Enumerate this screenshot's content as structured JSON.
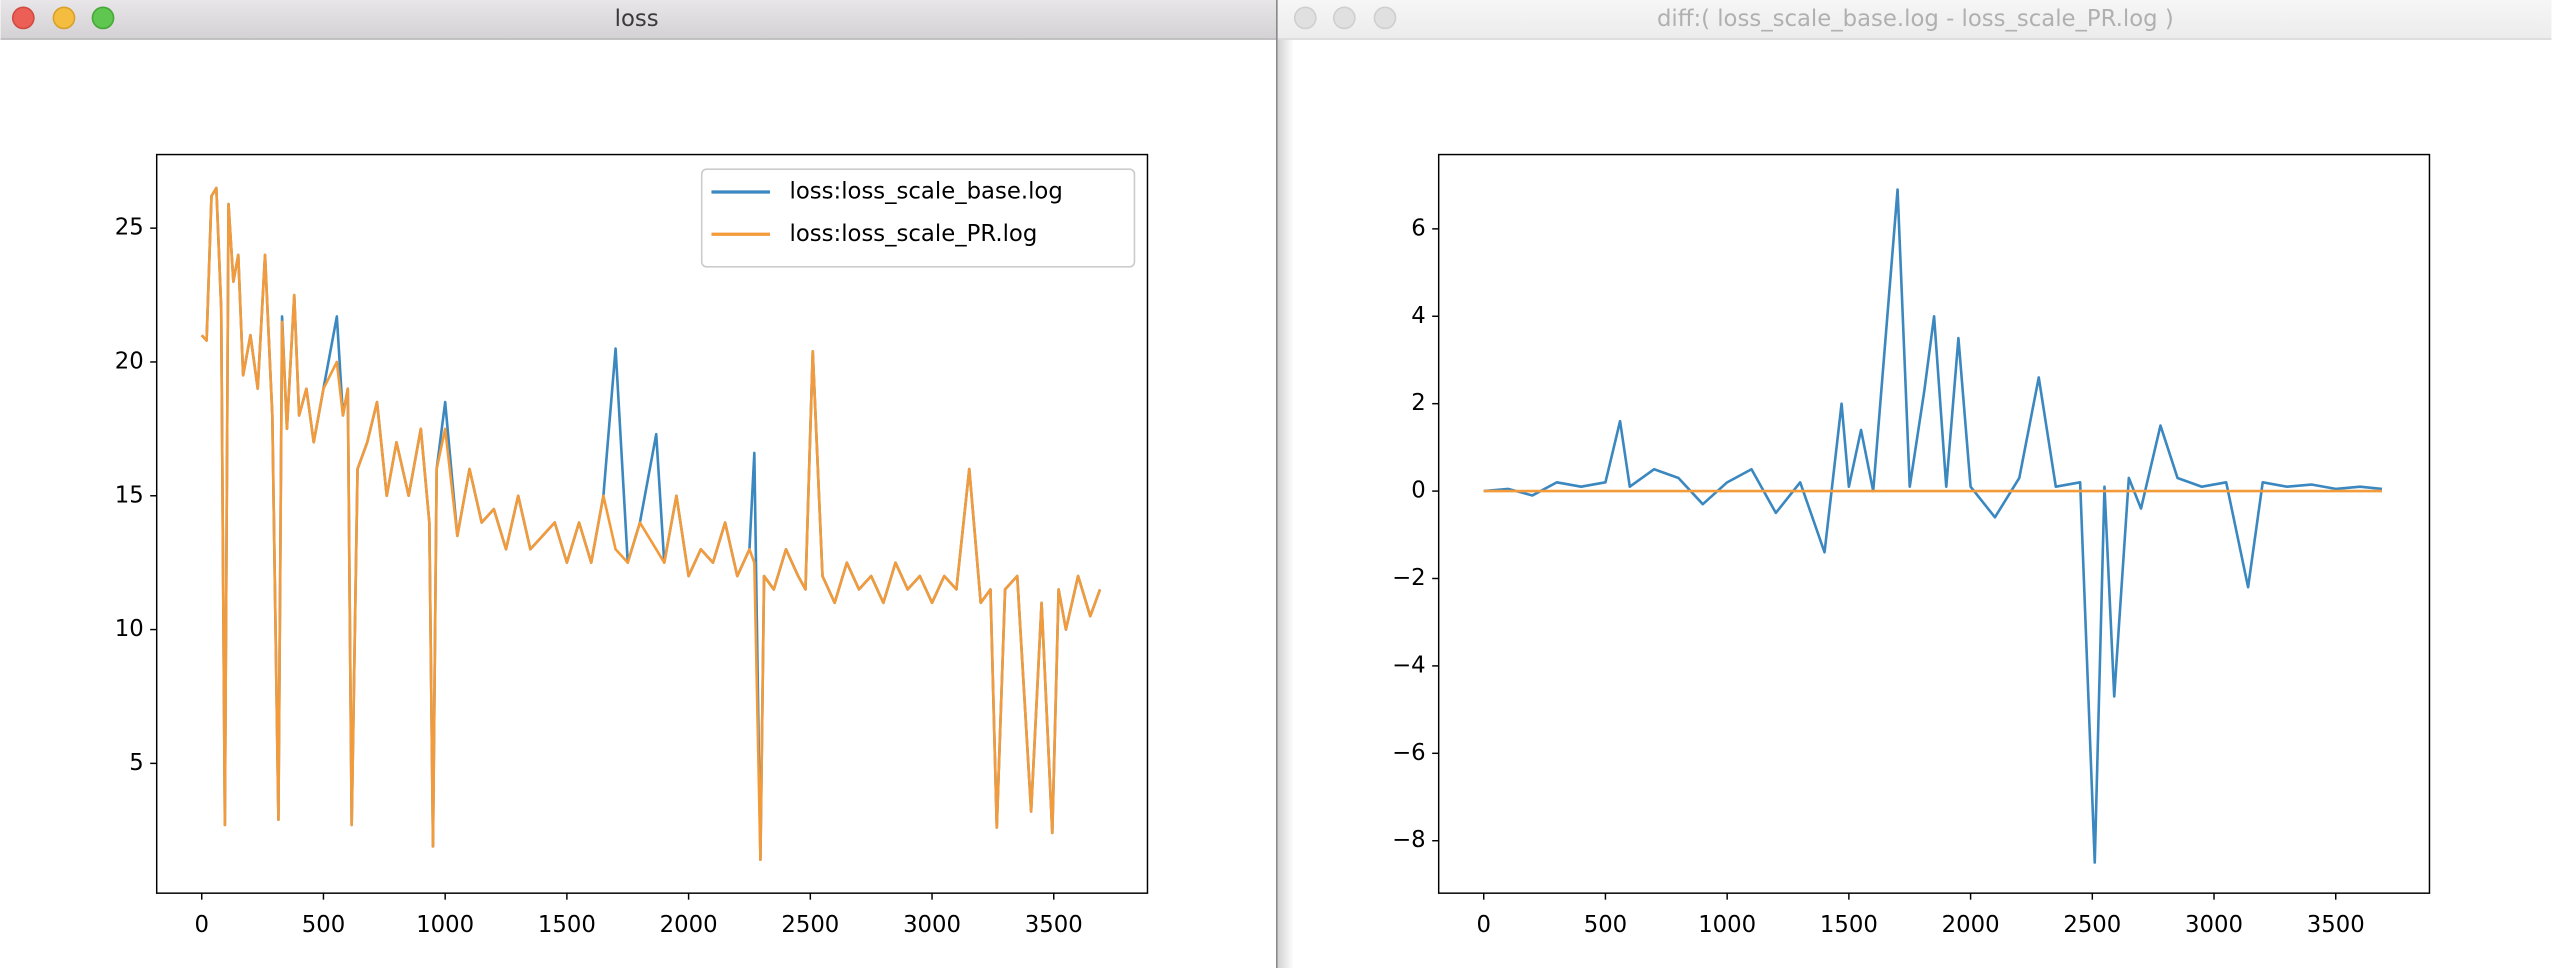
{
  "windows": [
    {
      "title": "loss"
    },
    {
      "title": "diff:( loss_scale_base.log - loss_scale_PR.log )"
    }
  ],
  "chart_data": [
    {
      "type": "line",
      "legend": "upper right",
      "xlim": [
        -185,
        3885
      ],
      "ylim": [
        0.15,
        27.75
      ],
      "xticks": [
        0,
        500,
        1000,
        1500,
        2000,
        2500,
        3000,
        3500
      ],
      "yticks": [
        5,
        10,
        15,
        20,
        25
      ],
      "series": [
        {
          "name": "loss:loss_scale_base.log",
          "color": "#3b87bf",
          "x": [
            0,
            20,
            40,
            60,
            80,
            95,
            110,
            130,
            150,
            170,
            200,
            230,
            260,
            290,
            315,
            330,
            350,
            380,
            400,
            430,
            460,
            500,
            555,
            580,
            600,
            616,
            640,
            680,
            720,
            760,
            800,
            850,
            900,
            935,
            950,
            965,
            1000,
            1050,
            1100,
            1150,
            1200,
            1250,
            1300,
            1350,
            1400,
            1450,
            1500,
            1550,
            1600,
            1650,
            1700,
            1750,
            1800,
            1867,
            1900,
            1950,
            2000,
            2050,
            2100,
            2150,
            2200,
            2250,
            2270,
            2295,
            2310,
            2350,
            2400,
            2450,
            2480,
            2510,
            2550,
            2600,
            2650,
            2700,
            2750,
            2800,
            2850,
            2900,
            2950,
            3000,
            3050,
            3100,
            3153,
            3200,
            3240,
            3266,
            3300,
            3350,
            3407,
            3450,
            3494,
            3520,
            3550,
            3600,
            3650,
            3690
          ],
          "values": [
            21,
            20.8,
            26.2,
            26.5,
            22,
            2.7,
            25.9,
            23,
            24,
            19.5,
            21,
            19,
            24,
            18,
            2.9,
            21.7,
            17.5,
            22.5,
            18,
            19,
            17,
            19,
            21.7,
            18,
            19,
            2.7,
            16,
            17,
            18.5,
            15,
            17,
            15,
            17.5,
            14,
            1.9,
            16,
            18.5,
            13.5,
            16,
            14,
            14.5,
            13,
            15,
            13,
            13.5,
            14,
            12.5,
            14,
            12.5,
            15,
            20.5,
            12.5,
            14,
            17.3,
            12.5,
            15,
            12,
            13,
            12.5,
            14,
            12,
            13,
            16.6,
            1.4,
            12,
            11.5,
            13,
            12,
            11.5,
            20.4,
            12,
            11,
            12.5,
            11.5,
            12,
            11,
            12.5,
            11.5,
            12,
            11,
            12,
            11.5,
            16,
            11,
            11.5,
            2.6,
            11.5,
            12,
            3.2,
            11,
            2.4,
            11.5,
            10,
            12,
            10.5,
            11.5
          ]
        },
        {
          "name": "loss:loss_scale_PR.log",
          "color": "#f39b3a",
          "x": [
            0,
            20,
            40,
            60,
            80,
            95,
            110,
            130,
            150,
            170,
            200,
            230,
            260,
            290,
            315,
            330,
            350,
            380,
            400,
            430,
            460,
            500,
            555,
            580,
            600,
            616,
            640,
            680,
            720,
            760,
            800,
            850,
            900,
            935,
            950,
            965,
            1000,
            1050,
            1100,
            1150,
            1200,
            1250,
            1300,
            1350,
            1400,
            1450,
            1500,
            1550,
            1600,
            1650,
            1700,
            1750,
            1800,
            1867,
            1900,
            1950,
            2000,
            2050,
            2100,
            2150,
            2200,
            2250,
            2270,
            2295,
            2310,
            2350,
            2400,
            2450,
            2480,
            2510,
            2550,
            2600,
            2650,
            2700,
            2750,
            2800,
            2850,
            2900,
            2950,
            3000,
            3050,
            3100,
            3153,
            3200,
            3240,
            3266,
            3300,
            3350,
            3407,
            3450,
            3494,
            3520,
            3550,
            3600,
            3650,
            3690
          ],
          "values": [
            21,
            20.8,
            26.2,
            26.5,
            22,
            2.7,
            25.9,
            23,
            24,
            19.5,
            21,
            19,
            24,
            18,
            2.9,
            21.5,
            17.5,
            22.5,
            18,
            19,
            17,
            19,
            20,
            18,
            19,
            2.7,
            16,
            17,
            18.5,
            15,
            17,
            15,
            17.5,
            14,
            1.9,
            16,
            17.5,
            13.5,
            16,
            14,
            14.5,
            13,
            15,
            13,
            13.5,
            14,
            12.5,
            14,
            12.5,
            15,
            13,
            12.5,
            14,
            13,
            12.5,
            15,
            12,
            13,
            12.5,
            14,
            12,
            13,
            12.5,
            1.4,
            12,
            11.5,
            13,
            12,
            11.5,
            20.4,
            12,
            11,
            12.5,
            11.5,
            12,
            11,
            12.5,
            11.5,
            12,
            11,
            12,
            11.5,
            16,
            11,
            11.5,
            2.6,
            11.5,
            12,
            3.2,
            11,
            2.4,
            11.5,
            10,
            12,
            10.5,
            11.5
          ]
        }
      ]
    },
    {
      "type": "line",
      "xlim": [
        -185,
        3885
      ],
      "ylim": [
        -9.2,
        7.7
      ],
      "xticks": [
        0,
        500,
        1000,
        1500,
        2000,
        2500,
        3000,
        3500
      ],
      "yticks": [
        {
          "value": -8,
          "label": "−8"
        },
        {
          "value": -6,
          "label": "−6"
        },
        {
          "value": -4,
          "label": "−4"
        },
        {
          "value": -2,
          "label": "−2"
        },
        0,
        2,
        4,
        6
      ],
      "series": [
        {
          "color": "#3b87bf",
          "x": [
            0,
            100,
            200,
            300,
            400,
            500,
            560,
            600,
            700,
            800,
            900,
            1000,
            1100,
            1200,
            1300,
            1400,
            1470,
            1500,
            1550,
            1600,
            1700,
            1750,
            1810,
            1850,
            1900,
            1950,
            2000,
            2100,
            2200,
            2280,
            2350,
            2450,
            2510,
            2550,
            2590,
            2650,
            2700,
            2780,
            2850,
            2950,
            3050,
            3140,
            3200,
            3300,
            3400,
            3500,
            3600,
            3690
          ],
          "values": [
            0,
            0.05,
            -0.1,
            0.2,
            0.1,
            0.2,
            1.6,
            0.1,
            0.5,
            0.3,
            -0.3,
            0.2,
            0.5,
            -0.5,
            0.2,
            -1.4,
            2.0,
            0.1,
            1.4,
            0,
            6.9,
            0.1,
            2.3,
            4.0,
            0.1,
            3.5,
            0.1,
            -0.6,
            0.3,
            2.6,
            0.1,
            0.2,
            -8.5,
            0.1,
            -4.7,
            0.3,
            -0.4,
            1.5,
            0.3,
            0.1,
            0.2,
            -2.2,
            0.2,
            0.1,
            0.15,
            0.05,
            0.1,
            0.05
          ]
        },
        {
          "color": "#f39b3a",
          "x": [
            0,
            1000,
            2000,
            3000,
            3690
          ],
          "values": [
            0,
            0,
            0,
            0,
            0
          ]
        }
      ]
    }
  ]
}
